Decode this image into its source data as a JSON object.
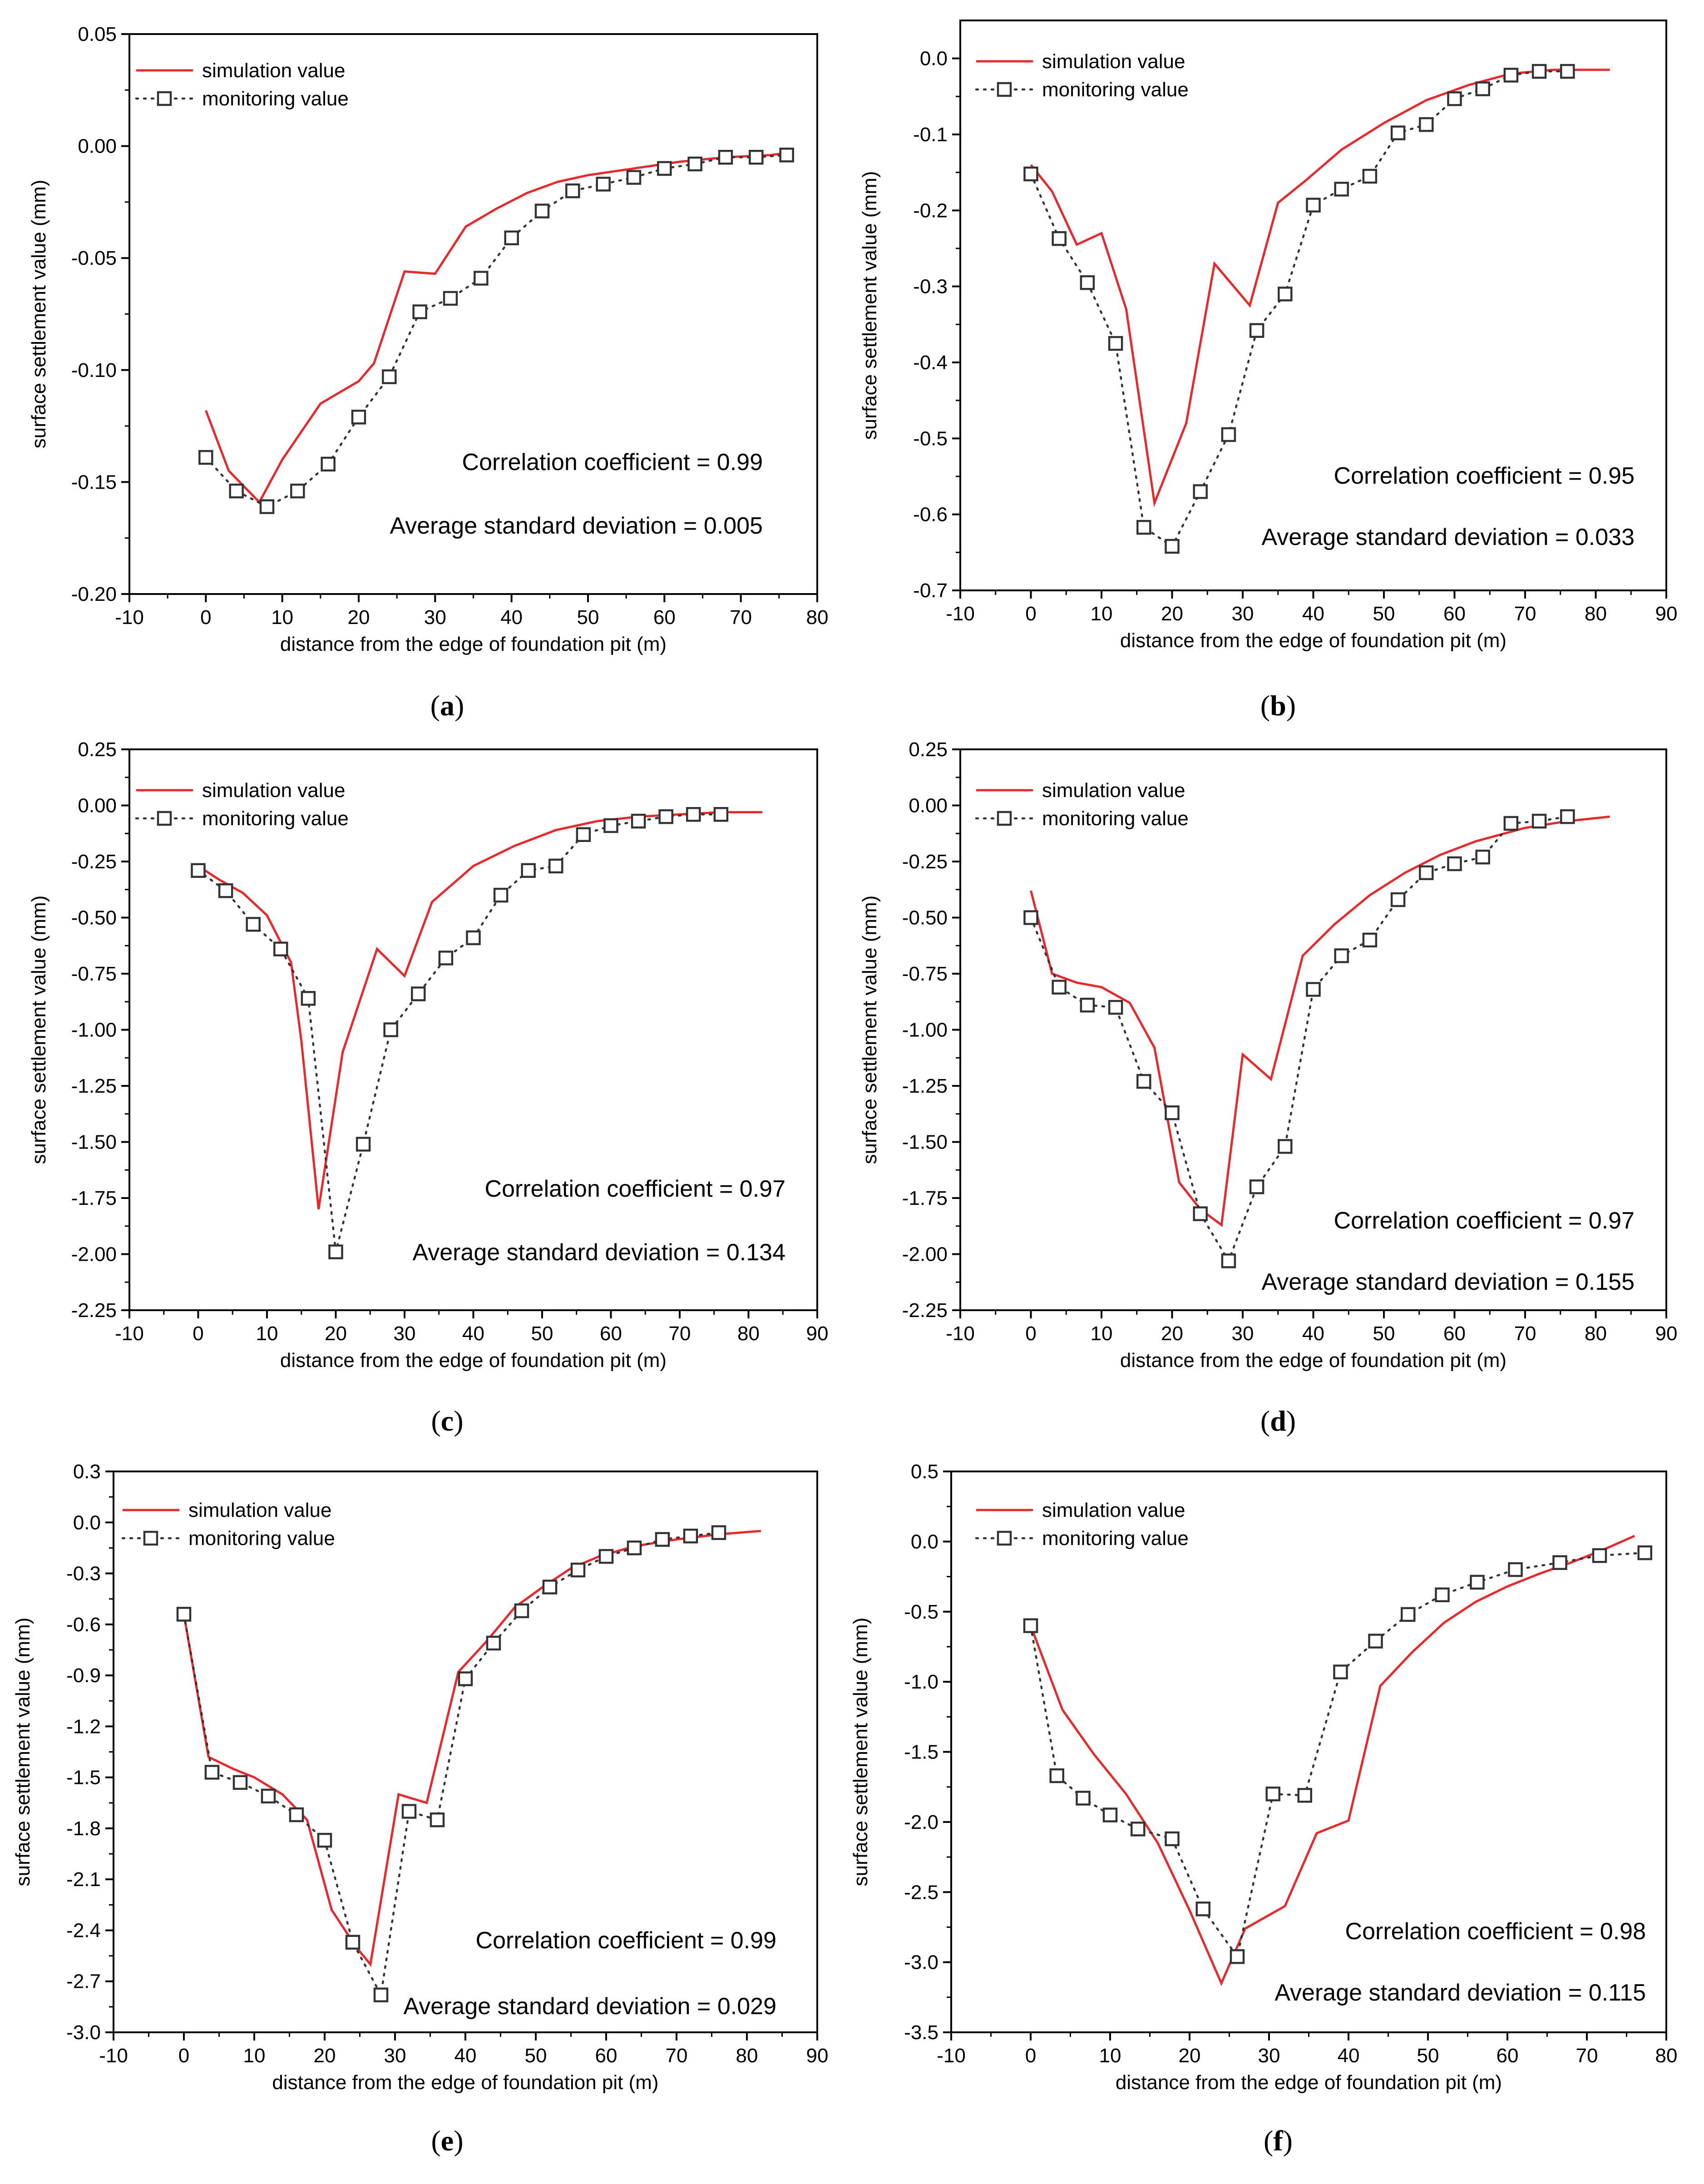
{
  "figure": {
    "simulation_color": "#e8282b",
    "monitoring_color": "#333333"
  },
  "chart_data": [
    {
      "id": "a",
      "panel_label": "a",
      "type": "line",
      "xlabel": "distance from the edge of foundation pit (m)",
      "ylabel": "surface settlement value (mm)",
      "xlim": [
        -10,
        80
      ],
      "ylim": [
        -0.2,
        0.05
      ],
      "xticks": [
        -10,
        0,
        10,
        20,
        30,
        40,
        50,
        60,
        70,
        80
      ],
      "yticks": [
        0.05,
        0.0,
        -0.05,
        -0.1,
        -0.15,
        -0.2
      ],
      "ytick_labels": [
        "0.05",
        "0.00",
        "-0.05",
        "-0.10",
        "-0.15",
        "-0.20"
      ],
      "legend": [
        "simulation value",
        "monitoring value"
      ],
      "annotations": [
        "Correlation coefficient = 0.99",
        "Average standard deviation = 0.005"
      ],
      "series": [
        {
          "name": "simulation value",
          "x": [
            0,
            3,
            7,
            10,
            15,
            20,
            22,
            26,
            30,
            34,
            38,
            42,
            46,
            50,
            56,
            62,
            68,
            74,
            76
          ],
          "y": [
            -0.118,
            -0.145,
            -0.159,
            -0.14,
            -0.115,
            -0.105,
            -0.097,
            -0.056,
            -0.057,
            -0.036,
            -0.028,
            -0.021,
            -0.016,
            -0.013,
            -0.01,
            -0.007,
            -0.005,
            -0.004,
            -0.003
          ]
        },
        {
          "name": "monitoring value",
          "x": [
            0,
            4,
            8,
            12,
            16,
            20,
            24,
            28,
            32,
            36,
            40,
            44,
            48,
            52,
            56,
            60,
            64,
            68,
            72,
            76
          ],
          "y": [
            -0.139,
            -0.154,
            -0.161,
            -0.154,
            -0.142,
            -0.121,
            -0.103,
            -0.074,
            -0.068,
            -0.059,
            -0.041,
            -0.029,
            -0.02,
            -0.017,
            -0.014,
            -0.01,
            -0.008,
            -0.005,
            -0.005,
            -0.004
          ]
        }
      ]
    },
    {
      "id": "b",
      "panel_label": "b",
      "type": "line",
      "xlabel": "distance from the edge of foundation pit (m)",
      "ylabel": "surface settlement value (mm)",
      "xlim": [
        -10,
        90
      ],
      "ylim": [
        -0.7,
        0.05
      ],
      "xticks": [
        -10,
        0,
        10,
        20,
        30,
        40,
        50,
        60,
        70,
        80,
        90
      ],
      "yticks": [
        0.0,
        -0.1,
        -0.2,
        -0.3,
        -0.4,
        -0.5,
        -0.6,
        -0.7
      ],
      "ytick_labels": [
        "0.0",
        "-0.1",
        "-0.2",
        "-0.3",
        "-0.4",
        "-0.5",
        "-0.6",
        "-0.7"
      ],
      "legend": [
        "simulation value",
        "monitoring value"
      ],
      "annotations": [
        "Correlation coefficient = 0.95",
        "Average standard deviation = 0.033"
      ],
      "series": [
        {
          "name": "simulation value",
          "x": [
            0,
            3,
            6.5,
            10,
            13.5,
            17.5,
            22,
            26,
            31,
            35,
            39,
            44,
            50,
            56,
            62,
            68,
            74,
            82
          ],
          "y": [
            -0.14,
            -0.175,
            -0.245,
            -0.23,
            -0.33,
            -0.585,
            -0.48,
            -0.27,
            -0.325,
            -0.19,
            -0.16,
            -0.12,
            -0.085,
            -0.055,
            -0.035,
            -0.02,
            -0.015,
            -0.015
          ]
        },
        {
          "name": "monitoring value",
          "x": [
            0,
            4,
            8,
            12,
            16,
            20,
            24,
            28,
            32,
            36,
            40,
            44,
            48,
            52,
            56,
            60,
            64,
            68,
            72,
            76
          ],
          "y": [
            -0.152,
            -0.237,
            -0.295,
            -0.375,
            -0.617,
            -0.642,
            -0.57,
            -0.495,
            -0.358,
            -0.31,
            -0.193,
            -0.172,
            -0.155,
            -0.098,
            -0.087,
            -0.053,
            -0.04,
            -0.022,
            -0.017,
            -0.017
          ]
        }
      ]
    },
    {
      "id": "c",
      "panel_label": "c",
      "type": "line",
      "xlabel": "distance from the edge of foundation pit (m)",
      "ylabel": "surface settlement value (mm)",
      "xlim": [
        -10,
        90
      ],
      "ylim": [
        -2.25,
        0.25
      ],
      "xticks": [
        -10,
        0,
        10,
        20,
        30,
        40,
        50,
        60,
        70,
        80,
        90
      ],
      "yticks": [
        0.25,
        0.0,
        -0.25,
        -0.5,
        -0.75,
        -1.0,
        -1.25,
        -1.5,
        -1.75,
        -2.0,
        -2.25
      ],
      "ytick_labels": [
        "0.25",
        "0.00",
        "-0.25",
        "-0.50",
        "-0.75",
        "-1.00",
        "-1.25",
        "-1.50",
        "-1.75",
        "-2.00",
        "-2.25"
      ],
      "legend": [
        "simulation value",
        "monitoring value"
      ],
      "annotations": [
        "Correlation coefficient = 0.97",
        "Average standard deviation = 0.134"
      ],
      "series": [
        {
          "name": "simulation value",
          "x": [
            0,
            3,
            6.5,
            10,
            13.5,
            15,
            17.5,
            21,
            26,
            30,
            34,
            40,
            46,
            52,
            58,
            64,
            70,
            76,
            82
          ],
          "y": [
            -0.27,
            -0.33,
            -0.39,
            -0.49,
            -0.7,
            -1.05,
            -1.8,
            -1.1,
            -0.64,
            -0.76,
            -0.43,
            -0.27,
            -0.18,
            -0.11,
            -0.07,
            -0.05,
            -0.04,
            -0.03,
            -0.03
          ]
        },
        {
          "name": "monitoring value",
          "x": [
            0,
            4,
            8,
            12,
            16,
            20,
            24,
            28,
            32,
            36,
            40,
            44,
            48,
            52,
            56,
            60,
            64,
            68,
            72,
            76
          ],
          "y": [
            -0.29,
            -0.38,
            -0.53,
            -0.64,
            -0.86,
            -1.99,
            -1.51,
            -1.0,
            -0.84,
            -0.68,
            -0.59,
            -0.4,
            -0.29,
            -0.27,
            -0.13,
            -0.09,
            -0.07,
            -0.05,
            -0.04,
            -0.04
          ]
        }
      ]
    },
    {
      "id": "d",
      "panel_label": "d",
      "type": "line",
      "xlabel": "distance from the edge of foundation pit (m)",
      "ylabel": "surface settlement value (mm)",
      "xlim": [
        -10,
        90
      ],
      "ylim": [
        -2.25,
        0.25
      ],
      "xticks": [
        -10,
        0,
        10,
        20,
        30,
        40,
        50,
        60,
        70,
        80,
        90
      ],
      "yticks": [
        0.25,
        0.0,
        -0.25,
        -0.5,
        -0.75,
        -1.0,
        -1.25,
        -1.5,
        -1.75,
        -2.0,
        -2.25
      ],
      "ytick_labels": [
        "0.25",
        "0.00",
        "-0.25",
        "-0.50",
        "-0.75",
        "-1.00",
        "-1.25",
        "-1.50",
        "-1.75",
        "-2.00",
        "-2.25"
      ],
      "legend": [
        "simulation value",
        "monitoring value"
      ],
      "annotations": [
        "Correlation coefficient = 0.97",
        "Average standard deviation = 0.155"
      ],
      "series": [
        {
          "name": "simulation value",
          "x": [
            0,
            3,
            6.5,
            10,
            14,
            17.5,
            21,
            24,
            27,
            30,
            34,
            38.5,
            43,
            48,
            53,
            58,
            63,
            70,
            76,
            82
          ],
          "y": [
            -0.38,
            -0.75,
            -0.79,
            -0.81,
            -0.88,
            -1.08,
            -1.68,
            -1.8,
            -1.87,
            -1.11,
            -1.22,
            -0.67,
            -0.53,
            -0.4,
            -0.3,
            -0.22,
            -0.16,
            -0.1,
            -0.07,
            -0.05
          ]
        },
        {
          "name": "monitoring value",
          "x": [
            0,
            4,
            8,
            12,
            16,
            20,
            24,
            28,
            32,
            36,
            40,
            44,
            48,
            52,
            56,
            60,
            64,
            68,
            72,
            76
          ],
          "y": [
            -0.5,
            -0.81,
            -0.89,
            -0.9,
            -1.23,
            -1.37,
            -1.82,
            -2.03,
            -1.7,
            -1.52,
            -0.82,
            -0.67,
            -0.6,
            -0.42,
            -0.3,
            -0.26,
            -0.23,
            -0.08,
            -0.07,
            -0.05
          ]
        }
      ]
    },
    {
      "id": "e",
      "panel_label": "e",
      "type": "line",
      "xlabel": "distance from the edge of foundation pit (m)",
      "ylabel": "surface settlement value (mm)",
      "xlim": [
        -10,
        90
      ],
      "ylim": [
        -3.0,
        0.3
      ],
      "xticks": [
        -10,
        0,
        10,
        20,
        30,
        40,
        50,
        60,
        70,
        80,
        90
      ],
      "yticks": [
        0.3,
        0.0,
        -0.3,
        -0.6,
        -0.9,
        -1.2,
        -1.5,
        -1.8,
        -2.1,
        -2.4,
        -2.7,
        -3.0
      ],
      "ytick_labels": [
        "0.3",
        "0.0",
        "-0.3",
        "-0.6",
        "-0.9",
        "-1.2",
        "-1.5",
        "-1.8",
        "-2.1",
        "-2.4",
        "-2.7",
        "-3.0"
      ],
      "legend": [
        "simulation value",
        "monitoring value"
      ],
      "annotations": [
        "Correlation coefficient = 0.99",
        "Average standard deviation = 0.029"
      ],
      "series": [
        {
          "name": "simulation value",
          "x": [
            0,
            3.5,
            7,
            10,
            14,
            17.5,
            21,
            24.5,
            26.5,
            30.5,
            34.5,
            39,
            43,
            47,
            51,
            55,
            59,
            64,
            70,
            76,
            82
          ],
          "y": [
            -0.54,
            -1.38,
            -1.45,
            -1.5,
            -1.6,
            -1.75,
            -2.28,
            -2.5,
            -2.6,
            -1.6,
            -1.65,
            -0.88,
            -0.7,
            -0.5,
            -0.38,
            -0.27,
            -0.2,
            -0.14,
            -0.1,
            -0.07,
            -0.05
          ]
        },
        {
          "name": "monitoring value",
          "x": [
            0,
            4,
            8,
            12,
            16,
            20,
            24,
            28,
            32,
            36,
            40,
            44,
            48,
            52,
            56,
            60,
            64,
            68,
            72,
            76
          ],
          "y": [
            -0.54,
            -1.47,
            -1.53,
            -1.61,
            -1.72,
            -1.87,
            -2.47,
            -2.78,
            -1.7,
            -1.75,
            -0.92,
            -0.71,
            -0.52,
            -0.38,
            -0.28,
            -0.2,
            -0.15,
            -0.1,
            -0.08,
            -0.06
          ]
        }
      ]
    },
    {
      "id": "f",
      "panel_label": "f",
      "type": "line",
      "xlabel": "distance from the edge of foundation pit (m)",
      "ylabel": "surface settlement value (mm)",
      "xlim": [
        -10,
        80
      ],
      "ylim": [
        -3.5,
        0.5
      ],
      "xticks": [
        -10,
        0,
        10,
        20,
        30,
        40,
        50,
        60,
        70,
        80
      ],
      "yticks": [
        0.5,
        0.0,
        -0.5,
        -1.0,
        -1.5,
        -2.0,
        -2.5,
        -3.0,
        -3.5
      ],
      "ytick_labels": [
        "0.5",
        "0.0",
        "-0.5",
        "-1.0",
        "-1.5",
        "-2.0",
        "-2.5",
        "-3.0",
        "-3.5"
      ],
      "legend": [
        "simulation value",
        "monitoring value"
      ],
      "annotations": [
        "Correlation coefficient = 0.98",
        "Average standard deviation = 0.115"
      ],
      "series": [
        {
          "name": "simulation value",
          "x": [
            0,
            4,
            8,
            12,
            16,
            20,
            24,
            27,
            32,
            36,
            40,
            44,
            48,
            52,
            56,
            60,
            64,
            68,
            72,
            76
          ],
          "y": [
            -0.6,
            -1.2,
            -1.52,
            -1.8,
            -2.15,
            -2.63,
            -3.15,
            -2.76,
            -2.6,
            -2.08,
            -1.99,
            -1.03,
            -0.79,
            -0.58,
            -0.43,
            -0.32,
            -0.23,
            -0.15,
            -0.06,
            0.04
          ]
        },
        {
          "name": "monitoring value",
          "x": [
            0,
            3.3,
            6.6,
            10,
            13.5,
            17.8,
            21.7,
            26,
            30.5,
            34.5,
            39,
            43.4,
            47.5,
            51.8,
            56.2,
            61,
            66.6,
            71.6,
            77.3
          ],
          "y": [
            -0.6,
            -1.67,
            -1.83,
            -1.95,
            -2.05,
            -2.12,
            -2.62,
            -2.96,
            -1.8,
            -1.81,
            -0.93,
            -0.71,
            -0.52,
            -0.38,
            -0.29,
            -0.2,
            -0.15,
            -0.1,
            -0.08
          ]
        }
      ]
    }
  ]
}
